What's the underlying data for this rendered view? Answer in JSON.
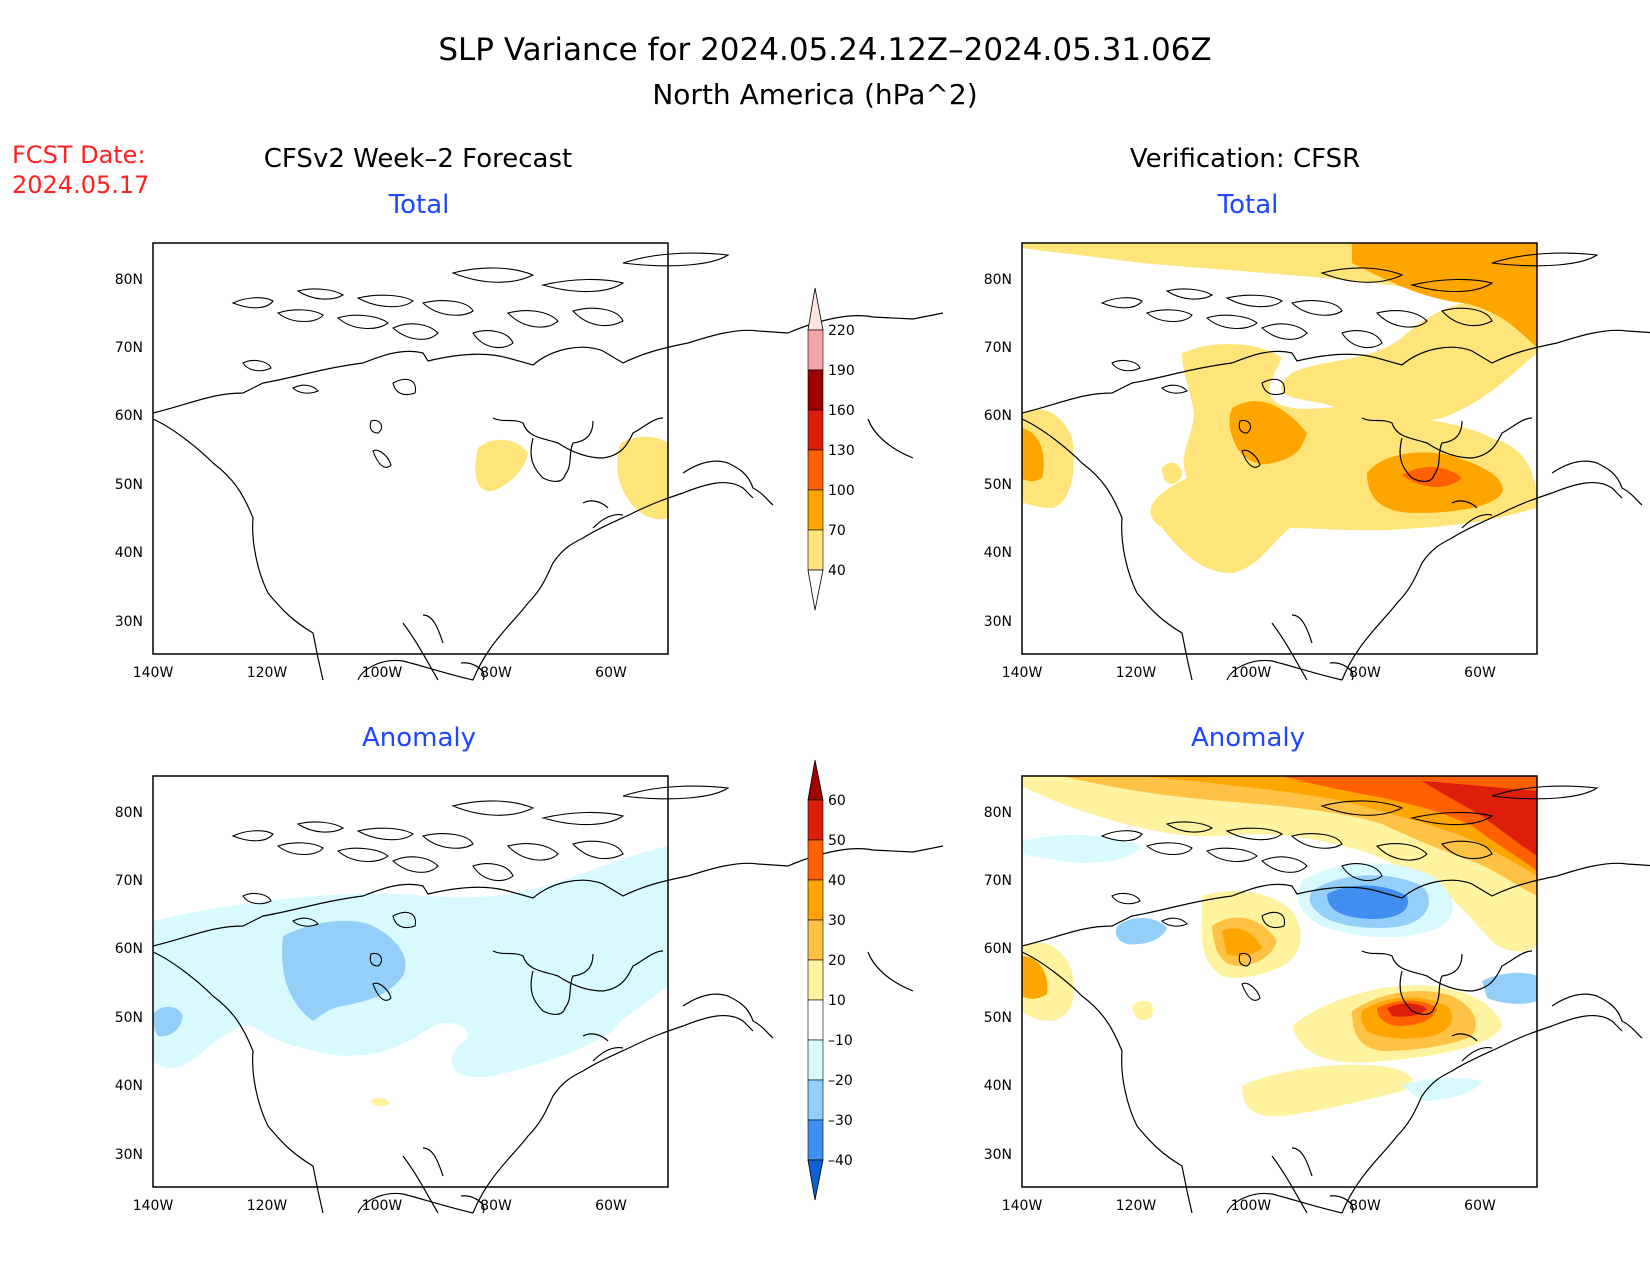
{
  "header": {
    "title": "SLP Variance for 2024.05.24.12Z–2024.05.31.06Z",
    "subtitle": "North America (hPa^2)"
  },
  "fcst": {
    "label": "FCST Date:",
    "date": "2024.05.17"
  },
  "columns": {
    "left": "CFSv2 Week–2 Forecast",
    "right": "Verification: CFSR"
  },
  "panel_titles": {
    "total": "Total",
    "anomaly": "Anomaly"
  },
  "axes": {
    "lon_labels": [
      "140W",
      "120W",
      "100W",
      "80W",
      "60W"
    ],
    "lat_labels": [
      "80N",
      "70N",
      "60N",
      "50N",
      "40N",
      "30N"
    ]
  },
  "colorbar_total": {
    "labels": [
      "220",
      "190",
      "160",
      "130",
      "100",
      "70",
      "40"
    ],
    "colors": [
      "#fde5e1",
      "#f3a4a4",
      "#9c0000",
      "#dc1e0a",
      "#ff6100",
      "#ffa500",
      "#ffe47a"
    ]
  },
  "colorbar_anomaly": {
    "labels": [
      "60",
      "50",
      "40",
      "30",
      "20",
      "10",
      "–10",
      "–20",
      "–30",
      "–40"
    ],
    "colors": [
      "#a50000",
      "#dc1e0a",
      "#ff6100",
      "#ffa500",
      "#ffc244",
      "#fff3a0",
      "#ffffff",
      "#d8faff",
      "#94cffa",
      "#3f8ef0",
      "#0c62d4"
    ]
  },
  "colors": {
    "title_text": "#000000",
    "panel_title": "#1e46ff",
    "fcst_text": "#ff2020"
  }
}
